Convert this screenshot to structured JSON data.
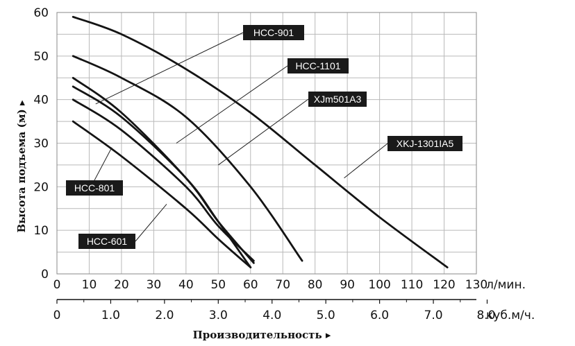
{
  "chart_data": {
    "type": "line",
    "xlabel": "Производительность ▸",
    "ylabel": "Высота подъема (м) ▸",
    "x_unit": "л/мин.",
    "x2_unit": "куб.м/ч.",
    "xlim": [
      0,
      130
    ],
    "ylim": [
      0,
      60
    ],
    "grid": true,
    "x_ticks": [
      "0",
      "10",
      "20",
      "30",
      "40",
      "50",
      "60",
      "70",
      "80",
      "90",
      "100",
      "110",
      "120",
      "130"
    ],
    "x2_ticks": [
      "0",
      "1.0",
      "2.0",
      "3.0",
      "4.0",
      "5.0",
      "6.0",
      "7.0",
      "8.0"
    ],
    "y_ticks": [
      "0",
      "10",
      "20",
      "30",
      "40",
      "50",
      "60"
    ],
    "series": [
      {
        "name": "XKJ-1301IA5",
        "x": [
          5,
          20,
          40,
          60,
          80,
          100,
          121
        ],
        "y": [
          59,
          55,
          47,
          37,
          25,
          13,
          1.5
        ]
      },
      {
        "name": "HCC-1101",
        "x": [
          5,
          20,
          40,
          60,
          76
        ],
        "y": [
          50,
          45,
          36,
          20,
          3
        ]
      },
      {
        "name": "HCC-901",
        "x": [
          5,
          20,
          40,
          50,
          61
        ],
        "y": [
          45,
          37,
          22,
          12,
          2.5
        ]
      },
      {
        "name": "XJm501A3",
        "x": [
          5,
          20,
          40,
          50,
          60
        ],
        "y": [
          43,
          36,
          22,
          12,
          1.5
        ]
      },
      {
        "name": "HCC-801",
        "x": [
          5,
          20,
          40,
          50,
          61
        ],
        "y": [
          40,
          33,
          20,
          11,
          3
        ]
      },
      {
        "name": "HCC-601",
        "x": [
          5,
          20,
          40,
          50,
          60
        ],
        "y": [
          35,
          27,
          15,
          8,
          1.5
        ]
      }
    ],
    "annotations": [
      {
        "text": "HCC-901",
        "series": "HCC-901",
        "anchor": [
          12,
          39
        ]
      },
      {
        "text": "HCC-1101",
        "series": "HCC-1101",
        "anchor": [
          37,
          30
        ]
      },
      {
        "text": "XJm501A3",
        "series": "XJm501A3",
        "anchor": [
          50,
          25
        ]
      },
      {
        "text": "XKJ-1301IA5",
        "series": "XKJ-1301IA5",
        "anchor": [
          89,
          22
        ]
      },
      {
        "text": "HCC-801",
        "series": "HCC-801",
        "anchor": [
          17,
          29
        ]
      },
      {
        "text": "HCC-601",
        "series": "HCC-601",
        "anchor": [
          34,
          16
        ]
      }
    ]
  }
}
